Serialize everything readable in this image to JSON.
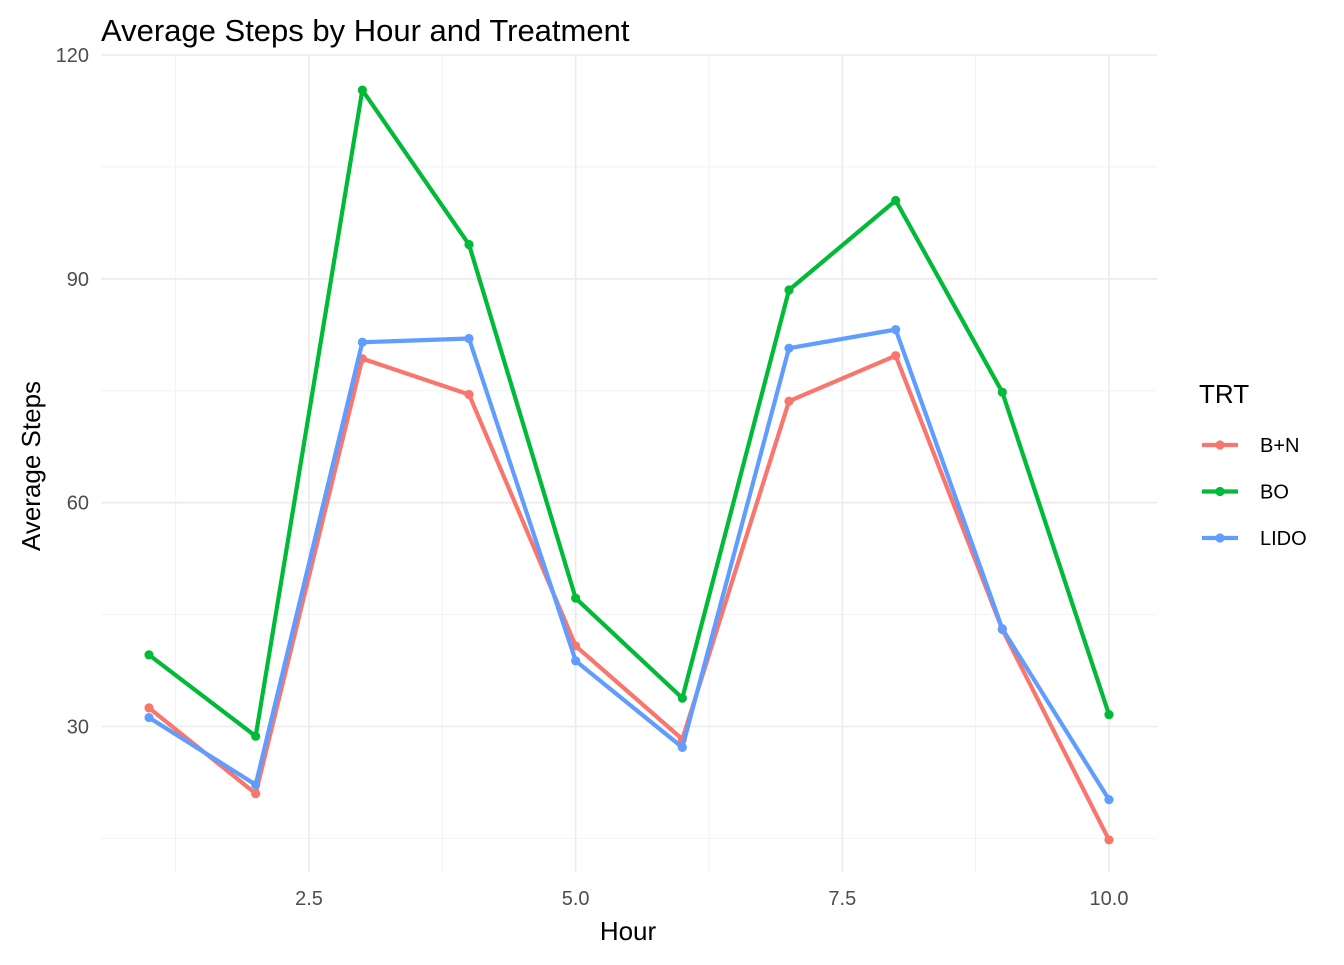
{
  "chart_data": {
    "type": "line",
    "title": "Average Steps by Hour and Treatment",
    "xlabel": "Hour",
    "ylabel": "Average Steps",
    "xlim": [
      0.55,
      10.45
    ],
    "ylim": [
      10.5,
      120
    ],
    "x_ticks": [
      2.5,
      5.0,
      7.5,
      10.0
    ],
    "x_tick_labels": [
      "2.5",
      "5.0",
      "7.5",
      "10.0"
    ],
    "x_minor_ticks": [
      1.25,
      3.75,
      6.25,
      8.75
    ],
    "y_ticks": [
      30,
      60,
      90,
      120
    ],
    "y_tick_labels": [
      "30",
      "60",
      "90",
      "120"
    ],
    "y_minor_ticks": [
      15,
      45,
      75,
      105
    ],
    "grid": true,
    "legend": {
      "title": "TRT",
      "position": "right"
    },
    "x": [
      1,
      2,
      3,
      4,
      5,
      6,
      7,
      8,
      9,
      10
    ],
    "series": [
      {
        "name": "B+N",
        "color": "#F8766D",
        "values": [
          32.5,
          21.0,
          79.3,
          74.5,
          40.8,
          28.3,
          73.6,
          79.7,
          43.0,
          14.8
        ]
      },
      {
        "name": "BO",
        "color": "#00BA38",
        "values": [
          39.6,
          28.7,
          115.3,
          94.6,
          47.2,
          33.8,
          88.5,
          100.5,
          74.8,
          31.6
        ]
      },
      {
        "name": "LIDO",
        "color": "#619CFF",
        "values": [
          31.2,
          22.2,
          81.5,
          82.0,
          38.8,
          27.2,
          80.7,
          83.2,
          43.1,
          20.2
        ]
      }
    ]
  }
}
